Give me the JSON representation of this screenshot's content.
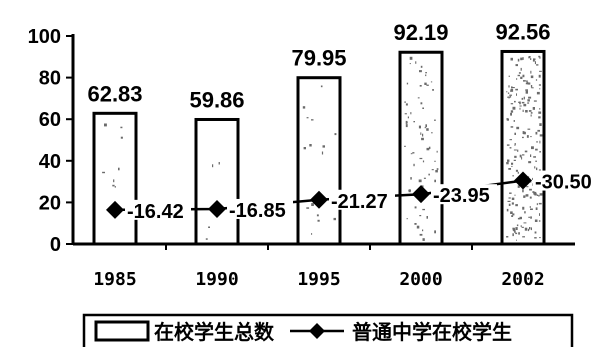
{
  "chart_data": {
    "type": "bar",
    "categories": [
      "1985",
      "1990",
      "1995",
      "2000",
      "2002"
    ],
    "ylim": [
      0,
      100
    ],
    "yticks": [
      0,
      20,
      40,
      60,
      80,
      100
    ],
    "grid": false,
    "legend_position": "bottom",
    "series": [
      {
        "name": "在校学生总数",
        "type": "bar",
        "values": [
          62.83,
          59.86,
          79.95,
          92.19,
          92.56
        ],
        "labels": [
          "62.83",
          "59.86",
          "79.95",
          "92.19",
          "92.56"
        ]
      },
      {
        "name": "普通中学在校学生",
        "type": "line",
        "marker": "diamond",
        "values": [
          16.42,
          16.85,
          21.27,
          23.95,
          30.5
        ],
        "labels": [
          "16.42",
          "16.85",
          "21.27",
          "23.95",
          "30.50"
        ]
      }
    ],
    "colors": {
      "bar_fill": "#ffffff",
      "bar_stroke": "#000000",
      "line": "#000000"
    }
  }
}
